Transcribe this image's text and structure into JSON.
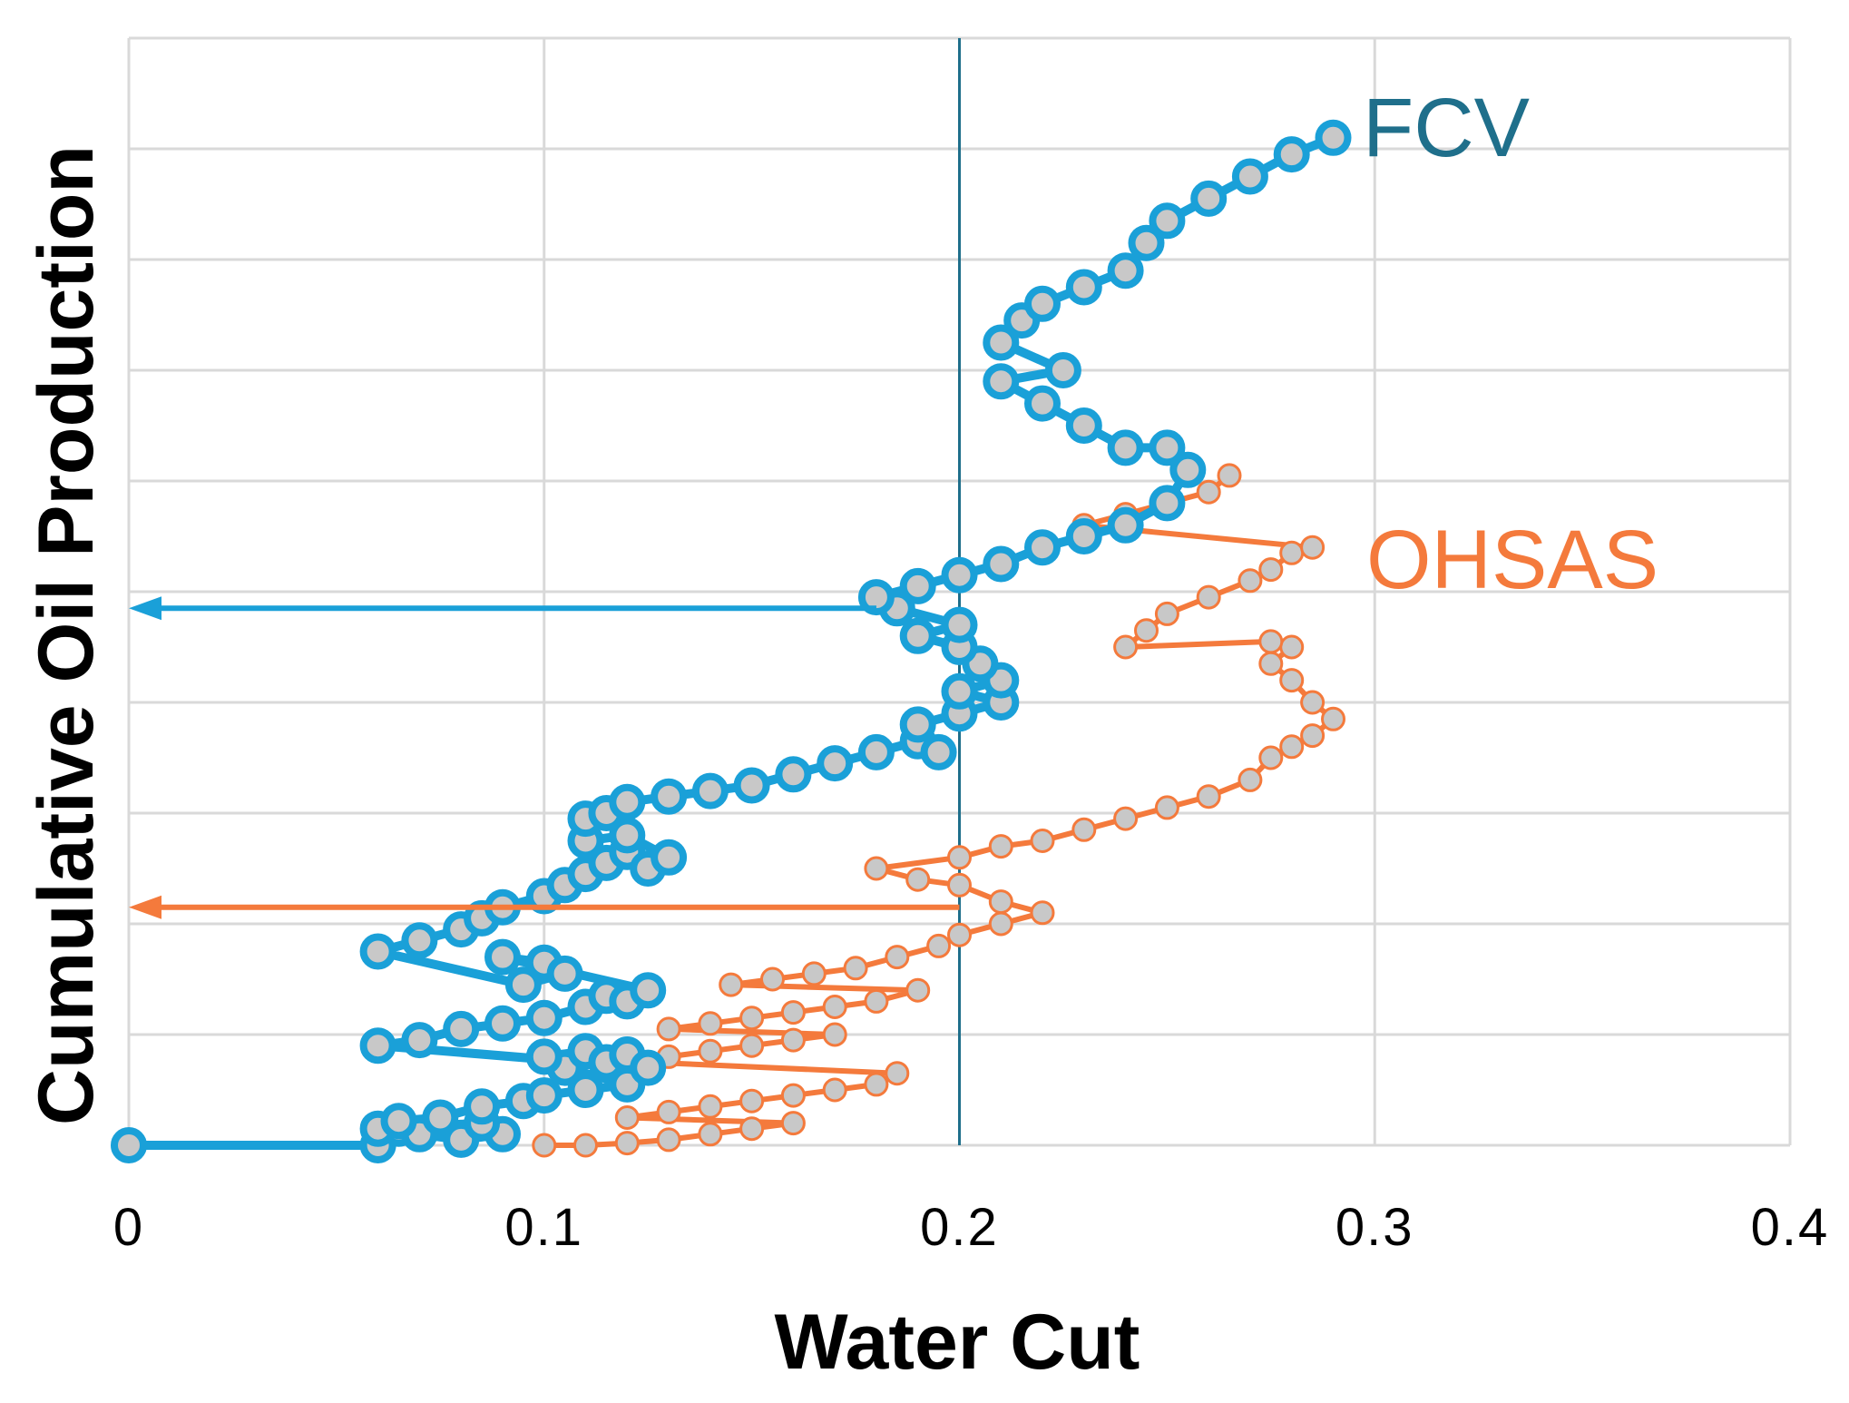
{
  "chart_data": {
    "type": "scatter",
    "title": "",
    "xlabel": "Water Cut",
    "ylabel": "Cumulative Oil Production",
    "xlim": [
      0,
      0.4
    ],
    "ylim": [
      0,
      10
    ],
    "xticks": [
      0,
      0.1,
      0.2,
      0.3,
      0.4
    ],
    "xtick_labels": [
      "0",
      "0.1",
      "0.2",
      "0.3",
      "0.4"
    ],
    "grid": true,
    "legend": "inline labels at right end of each series",
    "colors": {
      "FCV": "#1aa0d8",
      "OHSAS": "#f47a3c",
      "marker_fill": "#c8c8c8",
      "reference_line": "#1f6f8b",
      "grid": "#d9d9d9"
    },
    "reference_line": {
      "x": 0.2
    },
    "annotations": [
      {
        "series": "FCV",
        "from": [
          0.18,
          4.85
        ],
        "to": [
          0,
          4.85
        ]
      },
      {
        "series": "OHSAS",
        "from": [
          0.2,
          2.15
        ],
        "to": [
          0,
          2.15
        ]
      }
    ],
    "series": [
      {
        "name": "FCV",
        "label": "FCV",
        "points": [
          [
            0,
            0
          ],
          [
            0.06,
            0
          ],
          [
            0.065,
            0.15
          ],
          [
            0.07,
            0.1
          ],
          [
            0.08,
            0.05
          ],
          [
            0.09,
            0.1
          ],
          [
            0.085,
            0.2
          ],
          [
            0.06,
            0.15
          ],
          [
            0.065,
            0.22
          ],
          [
            0.075,
            0.25
          ],
          [
            0.085,
            0.35
          ],
          [
            0.095,
            0.4
          ],
          [
            0.1,
            0.45
          ],
          [
            0.11,
            0.5
          ],
          [
            0.12,
            0.55
          ],
          [
            0.105,
            0.7
          ],
          [
            0.1,
            0.8
          ],
          [
            0.11,
            0.85
          ],
          [
            0.115,
            0.75
          ],
          [
            0.12,
            0.82
          ],
          [
            0.125,
            0.7
          ],
          [
            0.06,
            0.9
          ],
          [
            0.07,
            0.95
          ],
          [
            0.08,
            1.05
          ],
          [
            0.09,
            1.1
          ],
          [
            0.1,
            1.15
          ],
          [
            0.11,
            1.25
          ],
          [
            0.115,
            1.35
          ],
          [
            0.12,
            1.3
          ],
          [
            0.125,
            1.4
          ],
          [
            0.09,
            1.7
          ],
          [
            0.1,
            1.65
          ],
          [
            0.105,
            1.55
          ],
          [
            0.095,
            1.45
          ],
          [
            0.06,
            1.75
          ],
          [
            0.07,
            1.85
          ],
          [
            0.08,
            1.95
          ],
          [
            0.085,
            2.05
          ],
          [
            0.09,
            2.15
          ],
          [
            0.1,
            2.25
          ],
          [
            0.105,
            2.35
          ],
          [
            0.11,
            2.45
          ],
          [
            0.115,
            2.55
          ],
          [
            0.12,
            2.65
          ],
          [
            0.125,
            2.5
          ],
          [
            0.13,
            2.6
          ],
          [
            0.12,
            2.8
          ],
          [
            0.11,
            2.75
          ],
          [
            0.11,
            2.95
          ],
          [
            0.115,
            3.0
          ],
          [
            0.12,
            3.1
          ],
          [
            0.13,
            3.15
          ],
          [
            0.14,
            3.2
          ],
          [
            0.15,
            3.25
          ],
          [
            0.16,
            3.35
          ],
          [
            0.17,
            3.45
          ],
          [
            0.18,
            3.55
          ],
          [
            0.19,
            3.65
          ],
          [
            0.195,
            3.55
          ],
          [
            0.19,
            3.8
          ],
          [
            0.2,
            3.9
          ],
          [
            0.21,
            4.0
          ],
          [
            0.2,
            4.1
          ],
          [
            0.21,
            4.2
          ],
          [
            0.205,
            4.35
          ],
          [
            0.2,
            4.5
          ],
          [
            0.19,
            4.6
          ],
          [
            0.2,
            4.7
          ],
          [
            0.185,
            4.85
          ],
          [
            0.18,
            4.95
          ],
          [
            0.19,
            5.05
          ],
          [
            0.2,
            5.15
          ],
          [
            0.21,
            5.25
          ],
          [
            0.22,
            5.4
          ],
          [
            0.23,
            5.5
          ],
          [
            0.24,
            5.6
          ],
          [
            0.25,
            5.8
          ],
          [
            0.255,
            6.1
          ],
          [
            0.25,
            6.3
          ],
          [
            0.24,
            6.3
          ],
          [
            0.23,
            6.5
          ],
          [
            0.22,
            6.7
          ],
          [
            0.21,
            6.9
          ],
          [
            0.225,
            7.0
          ],
          [
            0.21,
            7.25
          ],
          [
            0.215,
            7.45
          ],
          [
            0.22,
            7.6
          ],
          [
            0.23,
            7.75
          ],
          [
            0.24,
            7.9
          ],
          [
            0.245,
            8.15
          ],
          [
            0.25,
            8.35
          ],
          [
            0.26,
            8.55
          ],
          [
            0.27,
            8.75
          ],
          [
            0.28,
            8.95
          ],
          [
            0.29,
            9.1
          ]
        ]
      },
      {
        "name": "OHSAS",
        "label": "OHSAS",
        "points": [
          [
            0.1,
            0
          ],
          [
            0.11,
            0
          ],
          [
            0.12,
            0.02
          ],
          [
            0.13,
            0.05
          ],
          [
            0.14,
            0.1
          ],
          [
            0.15,
            0.15
          ],
          [
            0.16,
            0.2
          ],
          [
            0.12,
            0.25
          ],
          [
            0.13,
            0.3
          ],
          [
            0.14,
            0.35
          ],
          [
            0.15,
            0.4
          ],
          [
            0.16,
            0.45
          ],
          [
            0.17,
            0.5
          ],
          [
            0.18,
            0.55
          ],
          [
            0.185,
            0.65
          ],
          [
            0.125,
            0.75
          ],
          [
            0.13,
            0.8
          ],
          [
            0.14,
            0.85
          ],
          [
            0.15,
            0.9
          ],
          [
            0.16,
            0.95
          ],
          [
            0.17,
            1.0
          ],
          [
            0.13,
            1.05
          ],
          [
            0.14,
            1.1
          ],
          [
            0.15,
            1.15
          ],
          [
            0.16,
            1.2
          ],
          [
            0.17,
            1.25
          ],
          [
            0.18,
            1.3
          ],
          [
            0.19,
            1.4
          ],
          [
            0.145,
            1.45
          ],
          [
            0.155,
            1.5
          ],
          [
            0.165,
            1.55
          ],
          [
            0.175,
            1.6
          ],
          [
            0.185,
            1.7
          ],
          [
            0.195,
            1.8
          ],
          [
            0.2,
            1.9
          ],
          [
            0.21,
            2.0
          ],
          [
            0.22,
            2.1
          ],
          [
            0.21,
            2.2
          ],
          [
            0.2,
            2.35
          ],
          [
            0.19,
            2.4
          ],
          [
            0.18,
            2.5
          ],
          [
            0.2,
            2.6
          ],
          [
            0.21,
            2.7
          ],
          [
            0.22,
            2.75
          ],
          [
            0.23,
            2.85
          ],
          [
            0.24,
            2.95
          ],
          [
            0.25,
            3.05
          ],
          [
            0.26,
            3.15
          ],
          [
            0.27,
            3.3
          ],
          [
            0.275,
            3.5
          ],
          [
            0.28,
            3.6
          ],
          [
            0.285,
            3.7
          ],
          [
            0.29,
            3.85
          ],
          [
            0.285,
            4.0
          ],
          [
            0.28,
            4.2
          ],
          [
            0.275,
            4.35
          ],
          [
            0.28,
            4.5
          ],
          [
            0.275,
            4.55
          ],
          [
            0.24,
            4.5
          ],
          [
            0.245,
            4.65
          ],
          [
            0.25,
            4.8
          ],
          [
            0.26,
            4.95
          ],
          [
            0.27,
            5.1
          ],
          [
            0.275,
            5.2
          ],
          [
            0.28,
            5.35
          ],
          [
            0.285,
            5.4
          ],
          [
            0.23,
            5.6
          ],
          [
            0.24,
            5.7
          ],
          [
            0.25,
            5.8
          ],
          [
            0.26,
            5.9
          ],
          [
            0.265,
            6.05
          ]
        ]
      }
    ]
  }
}
